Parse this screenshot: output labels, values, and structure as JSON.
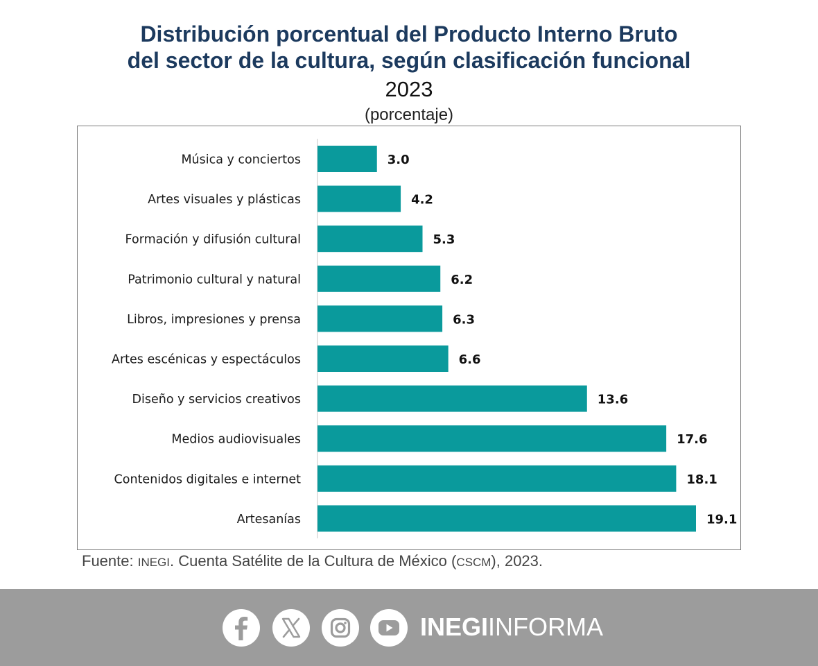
{
  "title_line1": "Distribución porcentual del Producto Interno Bruto",
  "title_line2": "del sector de la cultura, según clasificación funcional",
  "year": "2023",
  "unit": "(porcentaje)",
  "source": {
    "label": "Fuente: ",
    "org": "INEGI",
    "text1": ". Cuenta Satélite de la Cultura de México (",
    "abbr": "CSCM",
    "text2": "), 2023."
  },
  "footer": {
    "brand_bold": "INEGI",
    "brand_light": "INFORMA",
    "social_icons": [
      "facebook-icon",
      "x-icon",
      "instagram-icon",
      "youtube-icon"
    ]
  },
  "colors": {
    "bar": "#0a9a9c",
    "title": "#1c3a5e",
    "footer": "#9c9c9c"
  },
  "chart_data": {
    "type": "bar",
    "orientation": "horizontal",
    "categories": [
      "Música y conciertos",
      "Artes visuales y plásticas",
      "Formación y difusión cultural",
      "Patrimonio cultural y natural",
      "Libros, impresiones y prensa",
      "Artes escénicas y espectáculos",
      "Diseño y servicios creativos",
      "Medios audiovisuales",
      "Contenidos digitales e internet",
      "Artesanías"
    ],
    "values": [
      3.0,
      4.2,
      5.3,
      6.2,
      6.3,
      6.6,
      13.6,
      17.6,
      18.1,
      19.1
    ],
    "value_labels": [
      "3.0",
      "4.2",
      "5.3",
      "6.2",
      "6.3",
      "6.6",
      "13.6",
      "17.6",
      "18.1",
      "19.1"
    ],
    "xlim": [
      0,
      19.1
    ],
    "grid": false,
    "legend": false
  }
}
